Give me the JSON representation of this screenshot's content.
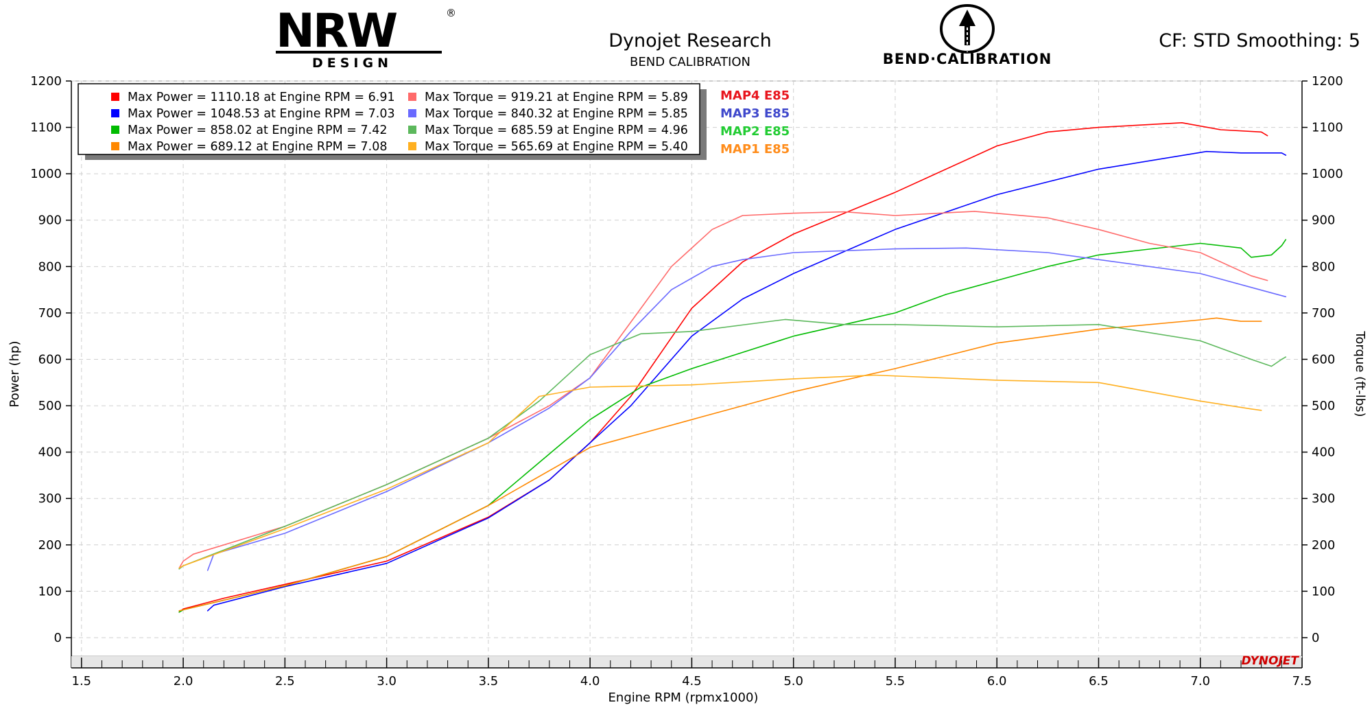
{
  "header": {
    "title": "Dynojet Research",
    "subtitle": "BEND CALIBRATION",
    "cf_smoothing": "CF: STD Smoothing: 5",
    "logo_left_main": "NRW",
    "logo_left_sub": "DESIGN",
    "logo_left_reg": "®",
    "logo_right_text": "BEND·CALIBRATION",
    "brand_mark": "DYNOJET"
  },
  "legend": {
    "power": [
      {
        "text": "Max Power = 1110.18 at Engine RPM = 6.91",
        "color": "#ff0000"
      },
      {
        "text": "Max Power = 1048.53 at Engine RPM = 7.03",
        "color": "#0000ff"
      },
      {
        "text": "Max Power = 858.02 at Engine RPM = 7.42",
        "color": "#00bb00"
      },
      {
        "text": "Max Power = 689.12 at Engine RPM = 7.08",
        "color": "#ff8800"
      }
    ],
    "torque": [
      {
        "text": "Max Torque = 919.21 at Engine RPM = 5.89",
        "color": "#ff6a6a"
      },
      {
        "text": "Max Torque = 840.32 at Engine RPM = 5.85",
        "color": "#6a6aff"
      },
      {
        "text": "Max Torque = 685.59 at Engine RPM = 4.96",
        "color": "#5cb85c"
      },
      {
        "text": "Max Torque = 565.69 at Engine RPM = 5.40",
        "color": "#ffb020"
      }
    ]
  },
  "map_labels": [
    {
      "text": "MAP4 E85",
      "color": "#e8141c"
    },
    {
      "text": "MAP3 E85",
      "color": "#3f48cc"
    },
    {
      "text": "MAP2 E85",
      "color": "#22cc33"
    },
    {
      "text": "MAP1 E85",
      "color": "#ff8c1a"
    }
  ],
  "chart_data": {
    "type": "line",
    "xlabel": "Engine RPM (rpmx1000)",
    "ylabel": "Power (hp)",
    "y2label": "Torque (ft-lbs)",
    "xlim": [
      1.45,
      7.5
    ],
    "ylim": [
      -40,
      1200
    ],
    "y2lim": [
      -40,
      1200
    ],
    "x_ticks": [
      "1.5",
      "2.0",
      "2.5",
      "3.0",
      "3.5",
      "4.0",
      "4.5",
      "5.0",
      "5.5",
      "6.0",
      "6.5",
      "7.0",
      "7.5"
    ],
    "y_ticks": [
      "0",
      "100",
      "200",
      "300",
      "400",
      "500",
      "600",
      "700",
      "800",
      "900",
      "1000",
      "1100",
      "1200"
    ],
    "y2_ticks": [
      "0",
      "100",
      "200",
      "300",
      "400",
      "500",
      "600",
      "700",
      "800",
      "900",
      "1000",
      "1100",
      "1200"
    ],
    "grid": true,
    "legend_position": "top-left",
    "series": [
      {
        "name": "MAP4 E85 Power",
        "axis": "left",
        "color": "#ff0000",
        "x": [
          1.98,
          2.0,
          2.2,
          2.5,
          3.0,
          3.5,
          3.8,
          4.0,
          4.2,
          4.5,
          4.75,
          5.0,
          5.5,
          6.0,
          6.25,
          6.5,
          6.91,
          7.1,
          7.3,
          7.33
        ],
        "y": [
          55,
          62,
          85,
          115,
          165,
          260,
          340,
          420,
          520,
          710,
          810,
          870,
          960,
          1060,
          1090,
          1100,
          1110,
          1095,
          1090,
          1082
        ]
      },
      {
        "name": "MAP3 E85 Power",
        "axis": "left",
        "color": "#0000ff",
        "x": [
          2.12,
          2.15,
          2.5,
          3.0,
          3.5,
          3.8,
          4.0,
          4.2,
          4.5,
          4.75,
          5.0,
          5.5,
          6.0,
          6.5,
          7.03,
          7.2,
          7.4,
          7.42
        ],
        "y": [
          58,
          70,
          110,
          160,
          258,
          340,
          420,
          500,
          650,
          730,
          785,
          880,
          955,
          1010,
          1048,
          1045,
          1045,
          1040
        ]
      },
      {
        "name": "MAP2 E85 Power",
        "axis": "left",
        "color": "#00bb00",
        "x": [
          1.98,
          2.0,
          2.5,
          3.0,
          3.5,
          4.0,
          4.25,
          4.5,
          5.0,
          5.5,
          5.75,
          6.0,
          6.25,
          6.5,
          7.0,
          7.2,
          7.25,
          7.35,
          7.4,
          7.42
        ],
        "y": [
          55,
          60,
          112,
          175,
          285,
          470,
          540,
          580,
          650,
          700,
          740,
          770,
          800,
          825,
          850,
          840,
          820,
          825,
          845,
          858
        ]
      },
      {
        "name": "MAP1 E85 Power",
        "axis": "left",
        "color": "#ff8800",
        "x": [
          1.98,
          2.0,
          2.5,
          3.0,
          3.5,
          4.0,
          4.25,
          4.5,
          4.75,
          5.0,
          5.5,
          6.0,
          6.5,
          7.0,
          7.08,
          7.2,
          7.3
        ],
        "y": [
          58,
          60,
          112,
          175,
          285,
          410,
          440,
          470,
          500,
          530,
          580,
          635,
          665,
          685,
          689,
          682,
          682
        ]
      },
      {
        "name": "MAP4 E85 Torque",
        "axis": "right",
        "color": "#ff6a6a",
        "x": [
          1.98,
          2.0,
          2.05,
          2.5,
          3.0,
          3.5,
          3.8,
          4.0,
          4.2,
          4.4,
          4.6,
          4.75,
          5.0,
          5.25,
          5.5,
          5.89,
          6.25,
          6.5,
          6.75,
          7.0,
          7.25,
          7.33
        ],
        "y": [
          150,
          165,
          180,
          240,
          330,
          430,
          500,
          560,
          680,
          800,
          880,
          910,
          915,
          918,
          910,
          919,
          905,
          880,
          850,
          830,
          780,
          770
        ]
      },
      {
        "name": "MAP3 E85 Torque",
        "axis": "right",
        "color": "#6a6aff",
        "x": [
          2.12,
          2.15,
          2.5,
          3.0,
          3.5,
          3.8,
          4.0,
          4.2,
          4.4,
          4.6,
          4.75,
          5.0,
          5.5,
          5.85,
          6.25,
          6.5,
          7.0,
          7.25,
          7.42
        ],
        "y": [
          145,
          180,
          225,
          315,
          420,
          495,
          560,
          660,
          750,
          800,
          815,
          830,
          838,
          840,
          830,
          815,
          785,
          755,
          735
        ]
      },
      {
        "name": "MAP2 E85 Torque",
        "axis": "right",
        "color": "#5cb85c",
        "x": [
          1.98,
          2.0,
          2.5,
          3.0,
          3.5,
          3.75,
          4.0,
          4.25,
          4.5,
          4.96,
          5.25,
          5.5,
          6.0,
          6.5,
          7.0,
          7.25,
          7.35,
          7.4,
          7.42
        ],
        "y": [
          148,
          155,
          240,
          330,
          430,
          510,
          610,
          655,
          660,
          686,
          675,
          675,
          670,
          675,
          640,
          600,
          585,
          600,
          605
        ]
      },
      {
        "name": "MAP1 E85 Torque",
        "axis": "right",
        "color": "#ffb020",
        "x": [
          1.98,
          2.0,
          2.5,
          3.0,
          3.5,
          3.75,
          4.0,
          4.5,
          5.0,
          5.4,
          6.0,
          6.5,
          6.75,
          7.0,
          7.25,
          7.3
        ],
        "y": [
          150,
          155,
          235,
          320,
          420,
          520,
          540,
          545,
          558,
          566,
          555,
          550,
          530,
          510,
          493,
          490
        ]
      }
    ]
  }
}
